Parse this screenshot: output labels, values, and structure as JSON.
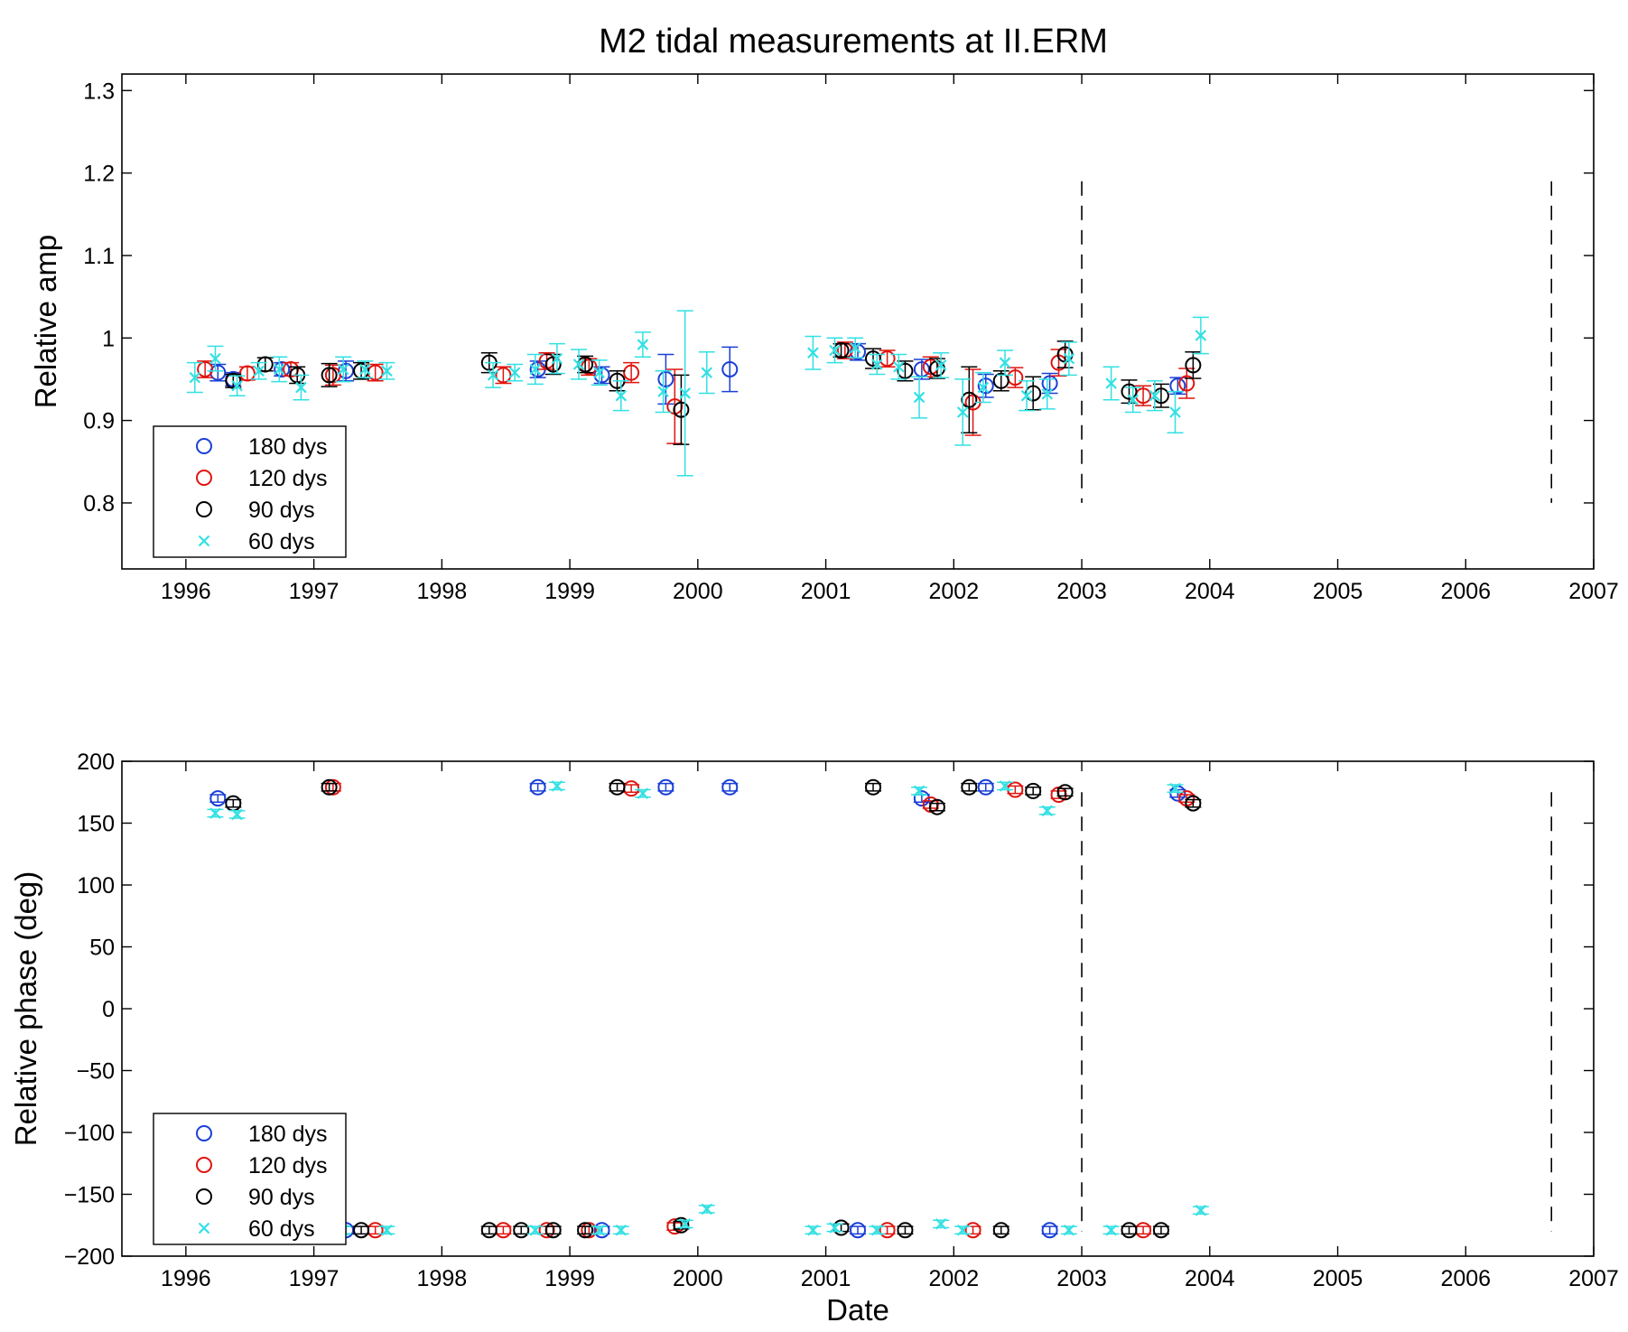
{
  "chart_data": [
    {
      "type": "scatter",
      "title": "M2 tidal measurements at II.ERM",
      "xlabel": "",
      "ylabel": "Relative amp",
      "xlim": [
        1995.5,
        2007
      ],
      "ylim": [
        0.72,
        1.32
      ],
      "xticks": [
        1996,
        1997,
        1998,
        1999,
        2000,
        2001,
        2002,
        2003,
        2004,
        2005,
        2006,
        2007
      ],
      "xtick_labels": [
        "1996",
        "1997",
        "1998",
        "1999",
        "2000",
        "2001",
        "2002",
        "2003",
        "2004",
        "2005",
        "2006",
        "2007"
      ],
      "yticks": [
        0.8,
        0.9,
        1.0,
        1.1,
        1.2,
        1.3
      ],
      "ytick_labels": [
        "0.8",
        "0.9",
        "1",
        "1.1",
        "1.2",
        "1.3"
      ],
      "vlines": [
        {
          "x": 2003.0,
          "ymin": 0.8,
          "ymax": 1.19
        },
        {
          "x": 2006.67,
          "ymin": 0.8,
          "ymax": 1.19
        }
      ],
      "legend": {
        "location": "lower-left",
        "entries": [
          "180 dys",
          "120 dys",
          "90 dys",
          "60 dys"
        ]
      },
      "series": [
        {
          "name": "180 dys",
          "color": "#1a3fd6",
          "marker": "circle",
          "points": [
            [
              1996.25,
              0.958,
              0.01
            ],
            [
              1996.37,
              0.95,
              0.008
            ],
            [
              1996.75,
              0.962,
              0.008
            ],
            [
              1997.25,
              0.96,
              0.012
            ],
            [
              1998.75,
              0.962,
              0.01
            ],
            [
              1999.25,
              0.955,
              0.01
            ],
            [
              1999.75,
              0.95,
              0.03
            ],
            [
              2000.25,
              0.962,
              0.027
            ],
            [
              2001.25,
              0.983,
              0.01
            ],
            [
              2001.75,
              0.962,
              0.012
            ],
            [
              2002.25,
              0.942,
              0.014
            ],
            [
              2002.75,
              0.945,
              0.012
            ],
            [
              2003.75,
              0.942,
              0.01
            ]
          ]
        },
        {
          "name": "120 dys",
          "color": "#e0140f",
          "marker": "circle",
          "points": [
            [
              1996.15,
              0.962,
              0.01
            ],
            [
              1996.48,
              0.957,
              0.008
            ],
            [
              1996.82,
              0.962,
              0.008
            ],
            [
              1997.15,
              0.955,
              0.012
            ],
            [
              1997.48,
              0.958,
              0.01
            ],
            [
              1998.48,
              0.955,
              0.01
            ],
            [
              1998.82,
              0.972,
              0.01
            ],
            [
              1999.15,
              0.965,
              0.01
            ],
            [
              1999.48,
              0.958,
              0.012
            ],
            [
              1999.82,
              0.917,
              0.045
            ],
            [
              2001.15,
              0.985,
              0.01
            ],
            [
              2001.48,
              0.975,
              0.01
            ],
            [
              2001.82,
              0.965,
              0.012
            ],
            [
              2002.15,
              0.922,
              0.04
            ],
            [
              2002.48,
              0.952,
              0.012
            ],
            [
              2002.82,
              0.97,
              0.016
            ],
            [
              2003.48,
              0.93,
              0.012
            ],
            [
              2003.82,
              0.945,
              0.018
            ]
          ]
        },
        {
          "name": "90 dys",
          "color": "#000000",
          "marker": "circle",
          "points": [
            [
              1996.37,
              0.948,
              0.008
            ],
            [
              1996.62,
              0.968,
              0.008
            ],
            [
              1996.87,
              0.955,
              0.01
            ],
            [
              1997.12,
              0.955,
              0.014
            ],
            [
              1997.37,
              0.96,
              0.01
            ],
            [
              1998.37,
              0.97,
              0.012
            ],
            [
              1998.87,
              0.968,
              0.012
            ],
            [
              1999.12,
              0.968,
              0.01
            ],
            [
              1999.37,
              0.948,
              0.012
            ],
            [
              1999.87,
              0.913,
              0.042
            ],
            [
              2001.12,
              0.985,
              0.008
            ],
            [
              2001.37,
              0.975,
              0.012
            ],
            [
              2001.62,
              0.96,
              0.012
            ],
            [
              2001.87,
              0.963,
              0.012
            ],
            [
              2002.12,
              0.925,
              0.04
            ],
            [
              2002.37,
              0.948,
              0.012
            ],
            [
              2002.62,
              0.933,
              0.02
            ],
            [
              2002.87,
              0.98,
              0.016
            ],
            [
              2003.37,
              0.935,
              0.014
            ],
            [
              2003.62,
              0.93,
              0.014
            ],
            [
              2003.87,
              0.967,
              0.016
            ]
          ]
        },
        {
          "name": "60 dys",
          "color": "#33e0e3",
          "marker": "x",
          "points": [
            [
              1996.07,
              0.952,
              0.018
            ],
            [
              1996.23,
              0.975,
              0.015
            ],
            [
              1996.4,
              0.942,
              0.012
            ],
            [
              1996.57,
              0.96,
              0.01
            ],
            [
              1996.73,
              0.962,
              0.015
            ],
            [
              1996.9,
              0.94,
              0.015
            ],
            [
              1997.23,
              0.962,
              0.015
            ],
            [
              1997.4,
              0.962,
              0.01
            ],
            [
              1997.57,
              0.96,
              0.01
            ],
            [
              1998.4,
              0.955,
              0.015
            ],
            [
              1998.57,
              0.958,
              0.01
            ],
            [
              1998.73,
              0.962,
              0.018
            ],
            [
              1998.9,
              0.975,
              0.018
            ],
            [
              1999.07,
              0.968,
              0.018
            ],
            [
              1999.23,
              0.958,
              0.015
            ],
            [
              1999.4,
              0.93,
              0.018
            ],
            [
              1999.57,
              0.992,
              0.015
            ],
            [
              1999.73,
              0.935,
              0.025
            ],
            [
              1999.9,
              0.933,
              0.1
            ],
            [
              2000.07,
              0.958,
              0.025
            ],
            [
              2000.9,
              0.982,
              0.02
            ],
            [
              2001.07,
              0.985,
              0.015
            ],
            [
              2001.23,
              0.988,
              0.012
            ],
            [
              2001.4,
              0.968,
              0.012
            ],
            [
              2001.57,
              0.965,
              0.015
            ],
            [
              2001.73,
              0.928,
              0.025
            ],
            [
              2001.9,
              0.967,
              0.015
            ],
            [
              2002.07,
              0.91,
              0.04
            ],
            [
              2002.23,
              0.94,
              0.018
            ],
            [
              2002.4,
              0.97,
              0.015
            ],
            [
              2002.57,
              0.93,
              0.018
            ],
            [
              2002.73,
              0.932,
              0.018
            ],
            [
              2002.9,
              0.975,
              0.02
            ],
            [
              2003.23,
              0.945,
              0.02
            ],
            [
              2003.4,
              0.925,
              0.015
            ],
            [
              2003.57,
              0.93,
              0.018
            ],
            [
              2003.73,
              0.91,
              0.025
            ],
            [
              2003.93,
              1.003,
              0.022
            ]
          ]
        }
      ]
    },
    {
      "type": "scatter",
      "title": "",
      "xlabel": "Date",
      "ylabel": "Relative phase (deg)",
      "xlim": [
        1995.5,
        2007
      ],
      "ylim": [
        -200,
        200
      ],
      "xticks": [
        1996,
        1997,
        1998,
        1999,
        2000,
        2001,
        2002,
        2003,
        2004,
        2005,
        2006,
        2007
      ],
      "xtick_labels": [
        "1996",
        "1997",
        "1998",
        "1999",
        "2000",
        "2001",
        "2002",
        "2003",
        "2004",
        "2005",
        "2006",
        "2007"
      ],
      "yticks": [
        -200,
        -150,
        -100,
        -50,
        0,
        50,
        100,
        150,
        200
      ],
      "ytick_labels": [
        "−200",
        "−150",
        "−100",
        "−50",
        "0",
        "50",
        "100",
        "150",
        "200"
      ],
      "vlines": [
        {
          "x": 2003.0,
          "ymin": -180,
          "ymax": 175
        },
        {
          "x": 2006.67,
          "ymin": -180,
          "ymax": 175
        }
      ],
      "legend": {
        "location": "lower-left",
        "entries": [
          "180 dys",
          "120 dys",
          "90 dys",
          "60 dys"
        ]
      },
      "series": [
        {
          "name": "180 dys",
          "color": "#1a3fd6",
          "marker": "circle",
          "points": [
            [
              1996.25,
              170,
              3
            ],
            [
              1997.25,
              -179,
              3
            ],
            [
              1998.75,
              179,
              3
            ],
            [
              1999.25,
              -179,
              3
            ],
            [
              1999.75,
              179,
              3
            ],
            [
              2000.25,
              179,
              3
            ],
            [
              2001.25,
              -179,
              3
            ],
            [
              2001.75,
              170,
              3
            ],
            [
              2002.25,
              179,
              3
            ],
            [
              2002.75,
              -179,
              3
            ],
            [
              2003.75,
              174,
              3
            ]
          ]
        },
        {
          "name": "120 dys",
          "color": "#e0140f",
          "marker": "circle",
          "points": [
            [
              1997.15,
              179,
              3
            ],
            [
              1997.48,
              -179,
              3
            ],
            [
              1998.48,
              -179,
              3
            ],
            [
              1998.82,
              -179,
              3
            ],
            [
              1999.15,
              -179,
              3
            ],
            [
              1999.48,
              178,
              3
            ],
            [
              1999.82,
              -176,
              3
            ],
            [
              2001.48,
              -179,
              3
            ],
            [
              2001.82,
              165,
              3
            ],
            [
              2002.15,
              -179,
              3
            ],
            [
              2002.48,
              177,
              3
            ],
            [
              2002.82,
              173,
              3
            ],
            [
              2003.48,
              -179,
              3
            ],
            [
              2003.82,
              170,
              3
            ]
          ]
        },
        {
          "name": "90 dys",
          "color": "#000000",
          "marker": "circle",
          "points": [
            [
              1996.37,
              166,
              3
            ],
            [
              1997.12,
              179,
              3
            ],
            [
              1997.37,
              -179,
              3
            ],
            [
              1998.37,
              -179,
              3
            ],
            [
              1998.62,
              -179,
              3
            ],
            [
              1998.87,
              -179,
              3
            ],
            [
              1999.12,
              -179,
              3
            ],
            [
              1999.37,
              179,
              3
            ],
            [
              1999.87,
              -175,
              3
            ],
            [
              2001.12,
              -177,
              3
            ],
            [
              2001.37,
              179,
              3
            ],
            [
              2001.62,
              -179,
              3
            ],
            [
              2001.87,
              163,
              3
            ],
            [
              2002.12,
              179,
              3
            ],
            [
              2002.37,
              -179,
              3
            ],
            [
              2002.62,
              176,
              3
            ],
            [
              2002.87,
              175,
              3
            ],
            [
              2003.37,
              -179,
              3
            ],
            [
              2003.62,
              -179,
              3
            ],
            [
              2003.87,
              166,
              3
            ]
          ]
        },
        {
          "name": "60 dys",
          "color": "#33e0e3",
          "marker": "x",
          "points": [
            [
              1996.23,
              158,
              3
            ],
            [
              1996.4,
              157,
              3
            ],
            [
              1997.23,
              -179,
              3
            ],
            [
              1997.57,
              -179,
              3
            ],
            [
              1998.73,
              -179,
              3
            ],
            [
              1998.9,
              180,
              3
            ],
            [
              1999.23,
              -179,
              3
            ],
            [
              1999.4,
              -179,
              3
            ],
            [
              1999.57,
              174,
              3
            ],
            [
              1999.9,
              -174,
              3
            ],
            [
              2000.07,
              -162,
              3
            ],
            [
              2000.9,
              -179,
              3
            ],
            [
              2001.07,
              -177,
              3
            ],
            [
              2001.4,
              -179,
              3
            ],
            [
              2001.73,
              176,
              3
            ],
            [
              2001.9,
              -174,
              3
            ],
            [
              2002.07,
              -179,
              3
            ],
            [
              2002.4,
              180,
              3
            ],
            [
              2002.73,
              160,
              3
            ],
            [
              2002.9,
              -179,
              3
            ],
            [
              2003.23,
              -179,
              3
            ],
            [
              2003.73,
              178,
              3
            ],
            [
              2003.93,
              -163,
              3
            ]
          ]
        }
      ]
    }
  ]
}
